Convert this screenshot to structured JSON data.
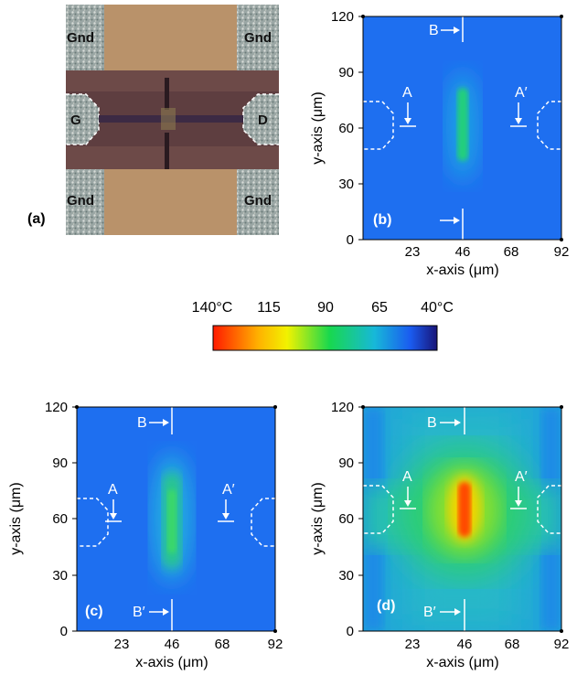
{
  "panels": {
    "a": {
      "label": "(a)",
      "pads": {
        "top_left": "Gnd",
        "top_right": "Gnd",
        "left": "G",
        "right": "D",
        "bottom_left": "Gnd",
        "bottom_right": "Gnd"
      }
    },
    "b": {
      "label": "(b)",
      "top_marker": "B",
      "bottom_marker": "",
      "left_marker": "A",
      "right_marker": "A′"
    },
    "c": {
      "label": "(c)",
      "top_marker": "B",
      "bottom_marker": "B′",
      "left_marker": "A",
      "right_marker": "A′"
    },
    "d": {
      "label": "(d)",
      "top_marker": "B",
      "bottom_marker": "B′",
      "left_marker": "A",
      "right_marker": "A′"
    }
  },
  "axes": {
    "xlabel": "x-axis (μm)",
    "ylabel": "y-axis (μm)",
    "x_ticks": [
      "0",
      "23",
      "46",
      "68",
      "92"
    ],
    "y_ticks": [
      "0",
      "30",
      "60",
      "90",
      "120"
    ],
    "x_range": [
      0,
      92
    ],
    "y_range": [
      0,
      120
    ]
  },
  "colorbar": {
    "labels": [
      "140°C",
      "115",
      "90",
      "65",
      "40°C"
    ],
    "colors": [
      "#ff1a00",
      "#ffb000",
      "#f2f200",
      "#18d84e",
      "#17b8d8",
      "#1a5cf0",
      "#181478"
    ]
  },
  "colors": {
    "map_background": "#1e6ff0",
    "marker": "#ffffff"
  }
}
